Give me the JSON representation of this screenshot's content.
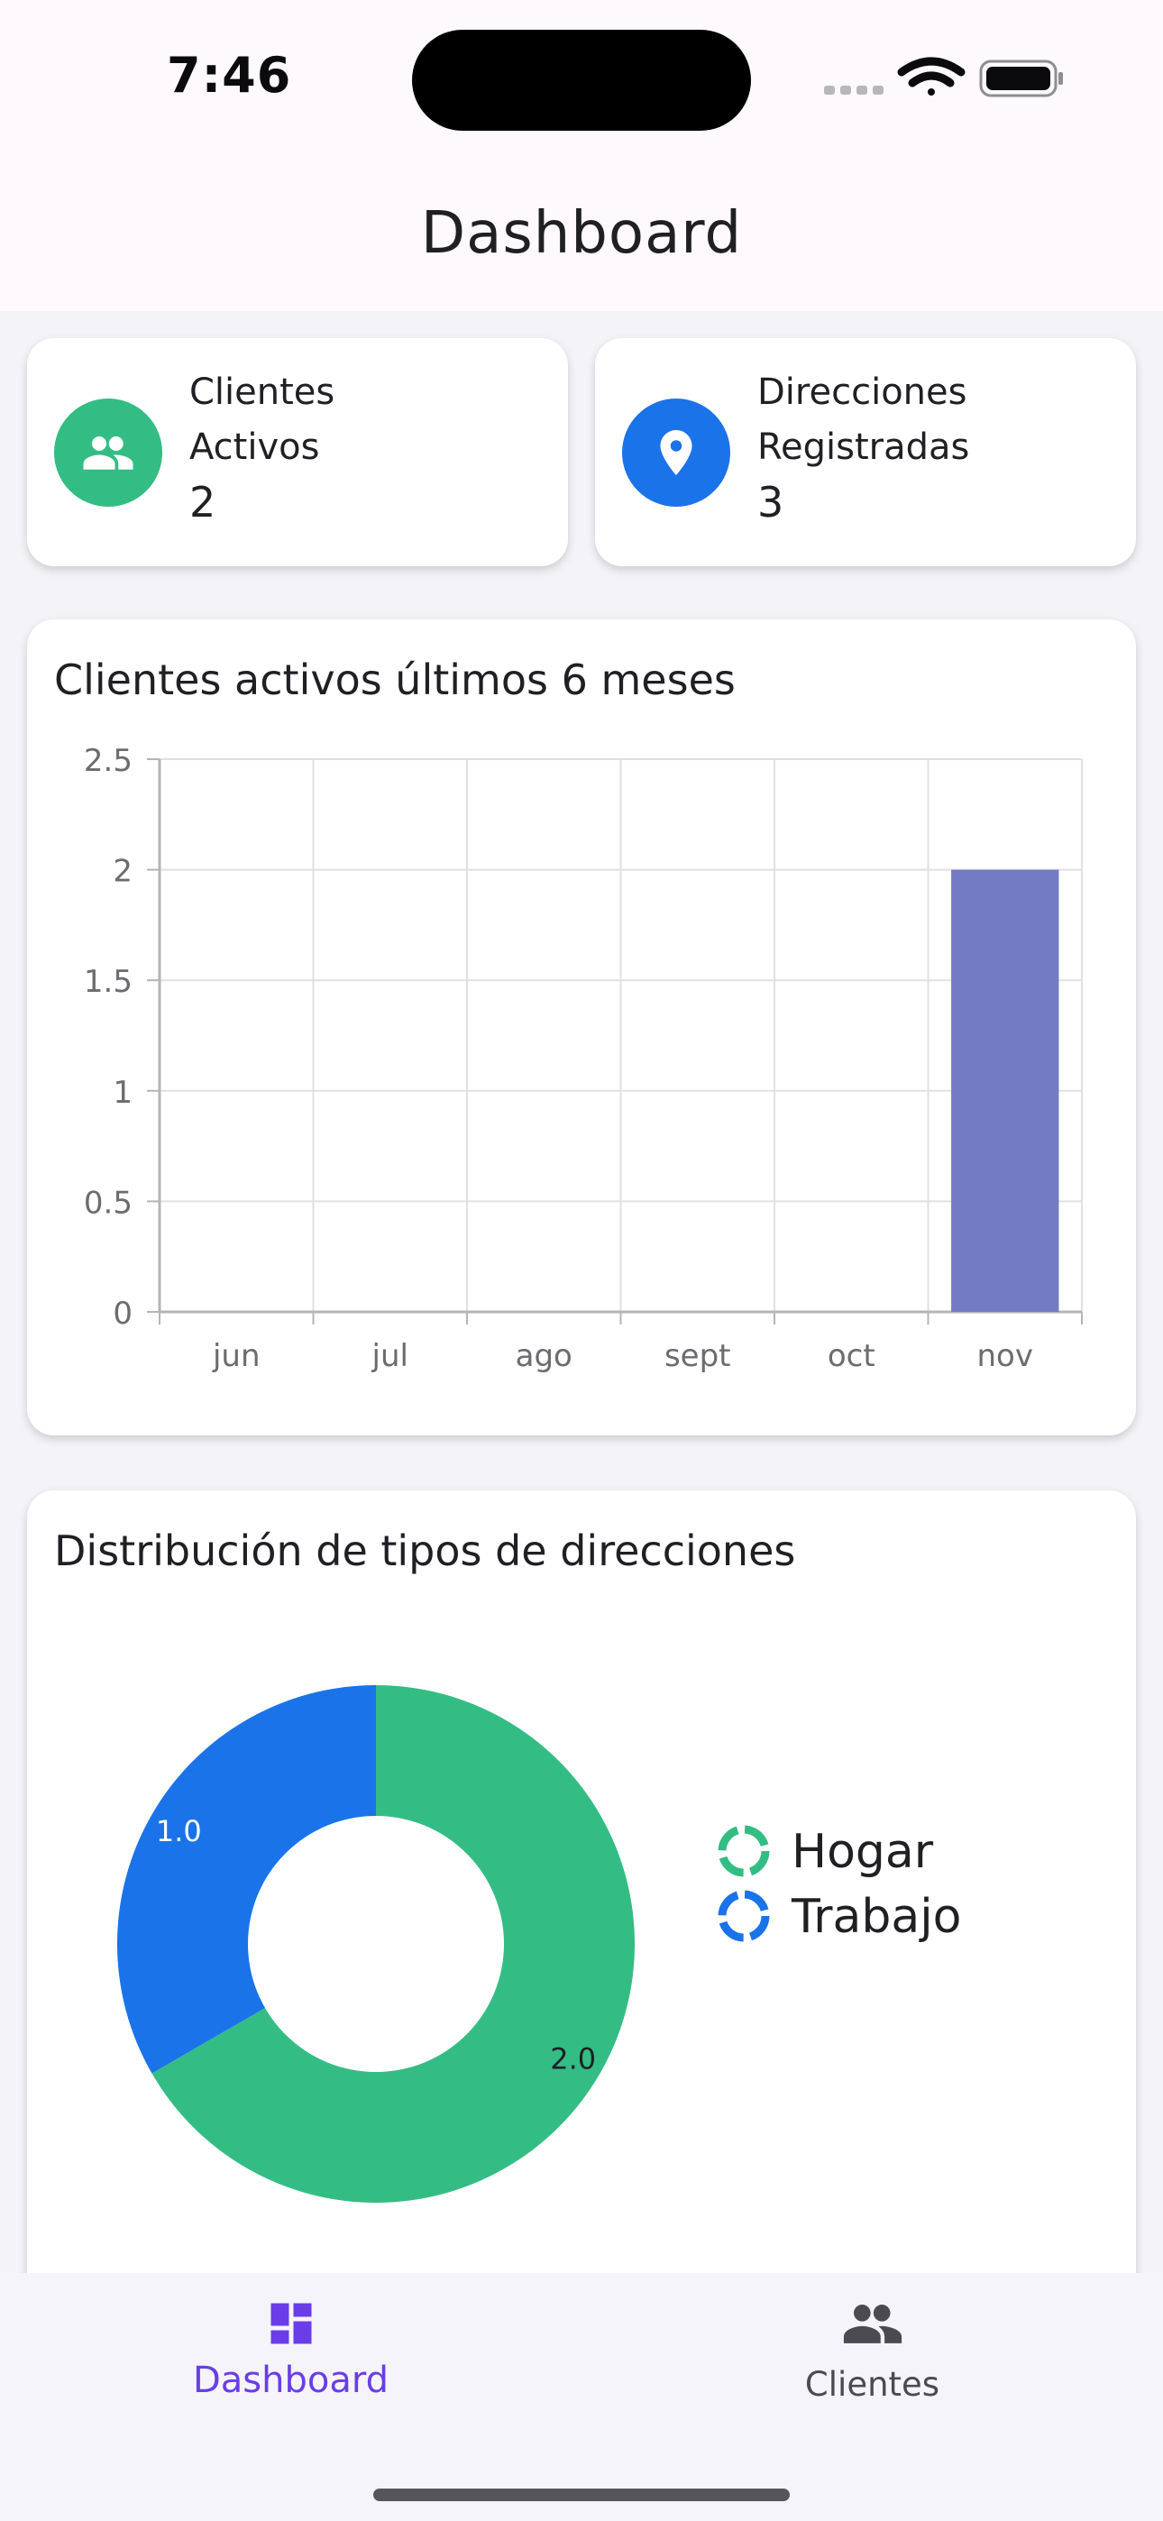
{
  "status_bar": {
    "time": "7:46"
  },
  "header": {
    "title": "Dashboard"
  },
  "stats": [
    {
      "label_line1": "Clientes",
      "label_line2": "Activos",
      "value": "2",
      "icon": "people-icon",
      "color": "#33bd84"
    },
    {
      "label_line1": "Direcciones",
      "label_line2": "Registradas",
      "value": "3",
      "icon": "location-pin-icon",
      "color": "#1a73e8"
    }
  ],
  "bar_card": {
    "title": "Clientes activos últimos 6 meses"
  },
  "pie_card": {
    "title": "Distribución de tipos de direcciones"
  },
  "chart_data": [
    {
      "type": "bar",
      "title": "Clientes activos últimos 6 meses",
      "categories": [
        "jun",
        "jul",
        "ago",
        "sept",
        "oct",
        "nov"
      ],
      "values": [
        0,
        0,
        0,
        0,
        0,
        2
      ],
      "ylim": [
        0,
        2.5
      ],
      "yticks": [
        "0",
        "0.5",
        "1",
        "1.5",
        "2",
        "2.5"
      ],
      "grid": true,
      "color": "#727bc4"
    },
    {
      "type": "pie",
      "donut": true,
      "title": "Distribución de tipos de direcciones",
      "labels": [
        "Hogar",
        "Trabajo"
      ],
      "values": [
        2.0,
        1.0
      ],
      "value_labels": [
        "2.0",
        "1.0"
      ],
      "colors": [
        "#33bd84",
        "#1a73e8"
      ],
      "legend": "right"
    }
  ],
  "bottom_nav": {
    "items": [
      {
        "label": "Dashboard",
        "icon": "dashboard-icon",
        "active": true,
        "color": "#6a3de8"
      },
      {
        "label": "Clientes",
        "icon": "people-icon",
        "active": false,
        "color": "#4a4a50"
      }
    ]
  }
}
